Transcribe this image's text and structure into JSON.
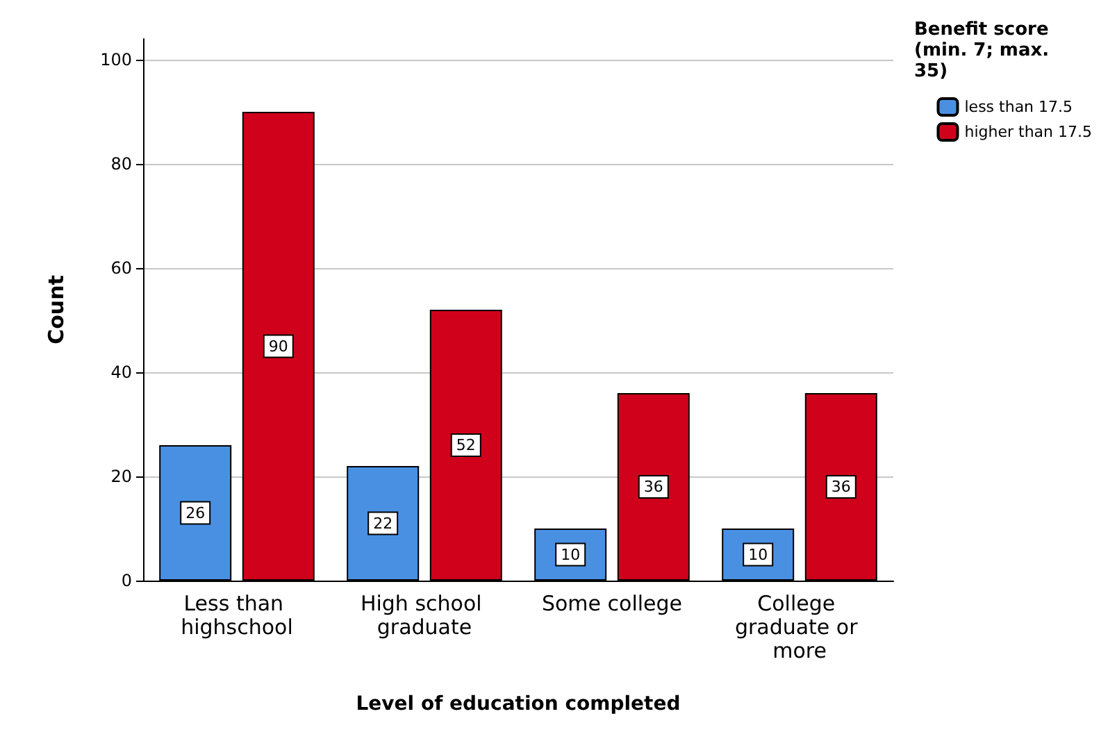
{
  "chart_data": {
    "type": "bar",
    "xlabel": "Level of education completed",
    "ylabel": "Count",
    "legend_title": "Benefit score (min. 7; max. 35)",
    "categories": [
      "Less than highschool",
      "High school graduate",
      "Some college",
      "College graduate or more"
    ],
    "series": [
      {
        "name": "less than 17.5",
        "color": "#4a90e2",
        "values": [
          26,
          22,
          10,
          10
        ]
      },
      {
        "name": "higher than 17.5",
        "color": "#d0021b",
        "values": [
          90,
          52,
          36,
          36
        ]
      }
    ],
    "ylim": [
      0,
      104
    ],
    "yticks": [
      0,
      20,
      40,
      60,
      80,
      100
    ],
    "grid": "y",
    "legend": "top right",
    "data_labels": true
  }
}
